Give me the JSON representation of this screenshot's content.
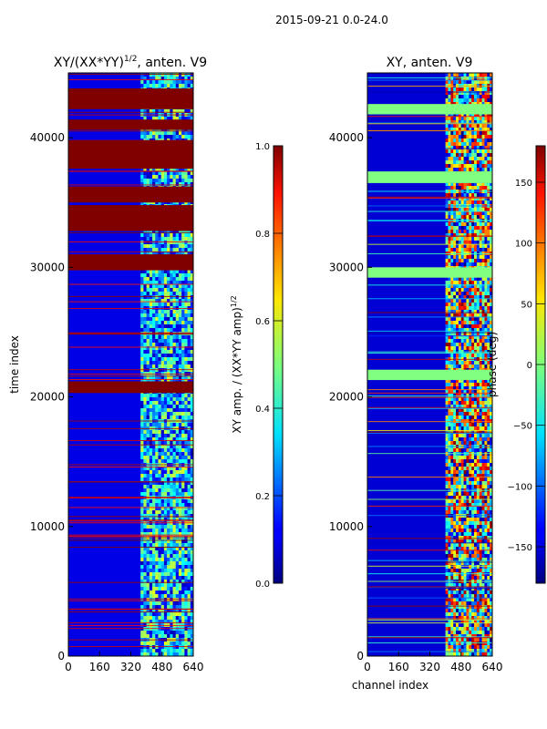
{
  "suptitle": "2015-09-21 0.0-24.0",
  "chart_data": [
    {
      "type": "heatmap",
      "title_main": "XY/(XX*YY)",
      "title_sup": "1/2",
      "title_tail": ", anten. V9",
      "xlabel": "",
      "ylabel": "time index",
      "xlim": [
        0,
        640
      ],
      "ylim": [
        0,
        45000
      ],
      "xticks": [
        0,
        160,
        320,
        480,
        640
      ],
      "yticks": [
        0,
        10000,
        20000,
        30000,
        40000
      ],
      "colorbar": {
        "label_main": "XY amp. / (XX*YY amp)",
        "label_sup": "1/2",
        "range": [
          0,
          1
        ],
        "ticks": [
          "0.0",
          "0.2",
          "0.4",
          "0.6",
          "0.8",
          "1.0"
        ],
        "tick_values": [
          0,
          0.2,
          0.4,
          0.6,
          0.8,
          1.0
        ]
      },
      "flagged_row_bands": [
        [
          20300,
          21200
        ],
        [
          29800,
          31000
        ],
        [
          32800,
          34800
        ],
        [
          35000,
          36200
        ],
        [
          37600,
          39800
        ],
        [
          40600,
          41400
        ],
        [
          42200,
          43800
        ]
      ],
      "signal_channel_range": [
        370,
        640
      ],
      "background_value": 0.1
    },
    {
      "type": "heatmap",
      "title_main": "XY, anten. V9",
      "xlabel": "channel index",
      "ylabel": "",
      "xlim": [
        0,
        640
      ],
      "ylim": [
        0,
        45000
      ],
      "xticks": [
        0,
        160,
        320,
        480,
        640
      ],
      "yticks": [
        0,
        10000,
        20000,
        30000,
        40000
      ],
      "colorbar": {
        "label_main": "phase (deg)",
        "range": [
          -180,
          180
        ],
        "ticks": [
          "150",
          "100",
          "50",
          "0",
          "−50",
          "−100",
          "−150"
        ],
        "tick_values": [
          150,
          100,
          50,
          0,
          -50,
          -100,
          -150
        ]
      },
      "flagged_row_bands": [
        [
          21300,
          22100
        ],
        [
          29200,
          30000
        ],
        [
          36500,
          37400
        ],
        [
          41800,
          42600
        ]
      ],
      "signal_channel_range": [
        400,
        640
      ],
      "background_value": -150
    }
  ]
}
